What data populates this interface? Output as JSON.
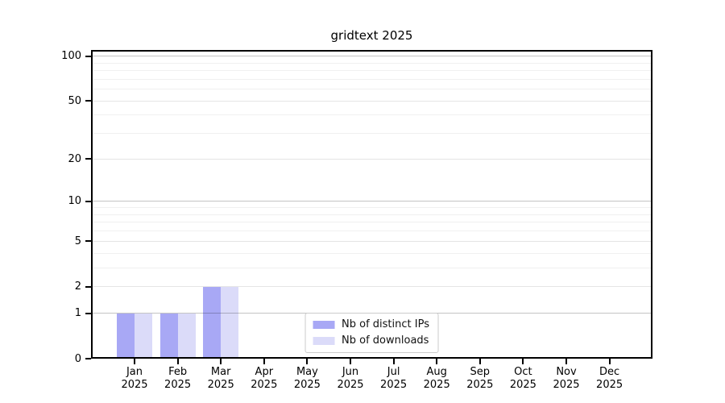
{
  "chart_data": {
    "type": "bar",
    "title": "gridtext 2025",
    "categories": [
      "Jan",
      "Feb",
      "Mar",
      "Apr",
      "May",
      "Jun",
      "Jul",
      "Aug",
      "Sep",
      "Oct",
      "Nov",
      "Dec"
    ],
    "x_year_line": "2025",
    "series": [
      {
        "name": "Nb of distinct IPs",
        "color": "#a8a8f5",
        "values": [
          1,
          1,
          2,
          0,
          0,
          0,
          0,
          0,
          0,
          0,
          0,
          0
        ]
      },
      {
        "name": "Nb of downloads",
        "color": "#dbdbf9",
        "values": [
          1,
          1,
          2,
          0,
          0,
          0,
          0,
          0,
          0,
          0,
          0,
          0
        ]
      }
    ],
    "y_ticks": [
      0,
      1,
      2,
      5,
      10,
      20,
      50,
      100
    ],
    "y_minor_gridlines": [
      3,
      4,
      6,
      7,
      8,
      9,
      30,
      40,
      60,
      70,
      80,
      90
    ],
    "decade_gridlines": [
      1,
      10,
      100
    ],
    "scale": "log1p",
    "ylim": [
      0,
      110
    ],
    "xlabel": "",
    "ylabel": "",
    "grid": true,
    "legend_position": "lower center",
    "axis_color": "#000000"
  }
}
